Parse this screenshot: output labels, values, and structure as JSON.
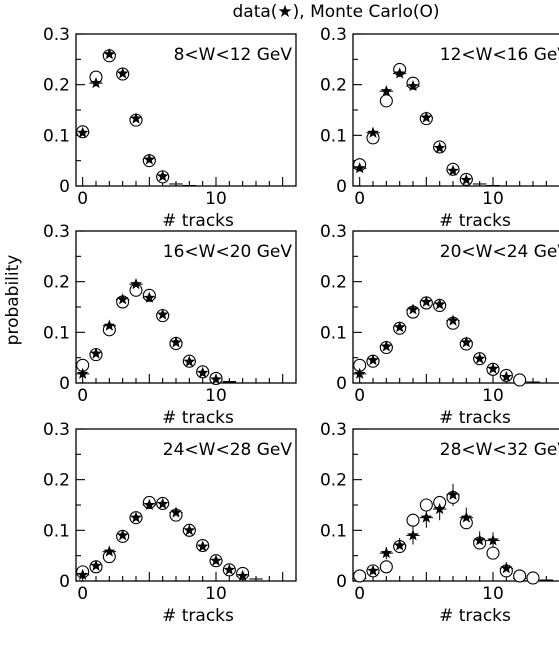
{
  "figure": {
    "title": "data(★), Monte Carlo(O)",
    "ylabel": "probability"
  },
  "chart_data": [
    {
      "type": "scatter",
      "title": "8<W<12 GeV",
      "xlabel": "# tracks",
      "ylabel": "probability",
      "xlim": [
        -0.5,
        16
      ],
      "ylim": [
        0,
        0.3
      ],
      "xticks": [
        "0",
        "10"
      ],
      "yticks": [
        "0",
        "0.1",
        "0.2",
        "0.3"
      ],
      "series": [
        {
          "name": "data",
          "marker": "star",
          "x": [
            0,
            1,
            2,
            3,
            4,
            5,
            6,
            7,
            8
          ],
          "y": [
            0.105,
            0.203,
            0.26,
            0.222,
            0.133,
            0.052,
            0.019,
            0.004,
            0.001
          ],
          "yerr": [
            0.005,
            0.006,
            0.007,
            0.006,
            0.005,
            0.004,
            0.003,
            0.002,
            0.001
          ]
        },
        {
          "name": "Monte Carlo",
          "marker": "circle",
          "x": [
            0,
            1,
            2,
            3,
            4,
            5,
            6,
            7,
            8
          ],
          "y": [
            0.107,
            0.215,
            0.257,
            0.221,
            0.13,
            0.05,
            0.018,
            0.004,
            0.001
          ]
        }
      ]
    },
    {
      "type": "scatter",
      "title": "12<W<16 GeV",
      "xlabel": "# tracks",
      "ylabel": "probability",
      "xlim": [
        -0.5,
        16
      ],
      "ylim": [
        0,
        0.3
      ],
      "xticks": [
        "0",
        "10"
      ],
      "yticks": [
        "0",
        "0.1",
        "0.2",
        "0.3"
      ],
      "series": [
        {
          "name": "data",
          "marker": "star",
          "x": [
            0,
            1,
            2,
            3,
            4,
            5,
            6,
            7,
            8,
            9,
            10
          ],
          "y": [
            0.035,
            0.105,
            0.187,
            0.222,
            0.197,
            0.135,
            0.075,
            0.03,
            0.012,
            0.004,
            0.001
          ],
          "yerr": [
            0.004,
            0.006,
            0.007,
            0.007,
            0.007,
            0.006,
            0.004,
            0.003,
            0.002,
            0.002,
            0.001
          ]
        },
        {
          "name": "Monte Carlo",
          "marker": "circle",
          "x": [
            0,
            1,
            2,
            3,
            4,
            5,
            6,
            7,
            8,
            9,
            10
          ],
          "y": [
            0.042,
            0.095,
            0.168,
            0.23,
            0.203,
            0.133,
            0.077,
            0.033,
            0.013,
            0.004,
            0.001
          ]
        }
      ]
    },
    {
      "type": "scatter",
      "title": "16<W<20 GeV",
      "xlabel": "# tracks",
      "ylabel": "probability",
      "xlim": [
        -0.5,
        16
      ],
      "ylim": [
        0,
        0.3
      ],
      "xticks": [
        "0",
        "10"
      ],
      "yticks": [
        "0",
        "0.1",
        "0.2",
        "0.3"
      ],
      "series": [
        {
          "name": "data",
          "marker": "star",
          "x": [
            0,
            1,
            2,
            3,
            4,
            5,
            6,
            7,
            8,
            9,
            10,
            11
          ],
          "y": [
            0.018,
            0.058,
            0.113,
            0.165,
            0.195,
            0.168,
            0.135,
            0.08,
            0.042,
            0.02,
            0.007,
            0.002
          ],
          "yerr": [
            0.004,
            0.005,
            0.006,
            0.007,
            0.007,
            0.007,
            0.006,
            0.005,
            0.004,
            0.003,
            0.002,
            0.001
          ]
        },
        {
          "name": "Monte Carlo",
          "marker": "circle",
          "x": [
            0,
            1,
            2,
            3,
            4,
            5,
            6,
            7,
            8,
            9,
            10,
            11
          ],
          "y": [
            0.035,
            0.056,
            0.105,
            0.16,
            0.183,
            0.173,
            0.133,
            0.078,
            0.043,
            0.022,
            0.009,
            0.003
          ]
        }
      ]
    },
    {
      "type": "scatter",
      "title": "20<W<24 GeV",
      "xlabel": "# tracks",
      "ylabel": "probability",
      "xlim": [
        -0.5,
        16
      ],
      "ylim": [
        0,
        0.3
      ],
      "xticks": [
        "0",
        "10"
      ],
      "yticks": [
        "0",
        "0.1",
        "0.2",
        "0.3"
      ],
      "series": [
        {
          "name": "data",
          "marker": "star",
          "x": [
            0,
            1,
            2,
            3,
            4,
            5,
            6,
            7,
            8,
            9,
            10,
            11,
            12,
            13
          ],
          "y": [
            0.018,
            0.045,
            0.072,
            0.11,
            0.145,
            0.16,
            0.155,
            0.123,
            0.08,
            0.048,
            0.028,
            0.012,
            0.005,
            0.002
          ],
          "yerr": [
            0.004,
            0.005,
            0.006,
            0.006,
            0.007,
            0.007,
            0.007,
            0.006,
            0.005,
            0.004,
            0.003,
            0.002,
            0.002,
            0.001
          ]
        },
        {
          "name": "Monte Carlo",
          "marker": "circle",
          "x": [
            0,
            1,
            2,
            3,
            4,
            5,
            6,
            7,
            8,
            9,
            10,
            11,
            12,
            13
          ],
          "y": [
            0.035,
            0.043,
            0.07,
            0.108,
            0.14,
            0.158,
            0.153,
            0.118,
            0.077,
            0.048,
            0.027,
            0.015,
            0.006,
            0.002
          ]
        }
      ]
    },
    {
      "type": "scatter",
      "title": "24<W<28 GeV",
      "xlabel": "# tracks",
      "ylabel": "probability",
      "xlim": [
        -0.5,
        16
      ],
      "ylim": [
        0,
        0.3
      ],
      "xticks": [
        "0",
        "10"
      ],
      "yticks": [
        "0",
        "0.1",
        "0.2",
        "0.3"
      ],
      "series": [
        {
          "name": "data",
          "marker": "star",
          "x": [
            0,
            1,
            2,
            3,
            4,
            5,
            6,
            7,
            8,
            9,
            10,
            11,
            12,
            13
          ],
          "y": [
            0.012,
            0.03,
            0.058,
            0.09,
            0.125,
            0.15,
            0.152,
            0.135,
            0.1,
            0.068,
            0.04,
            0.022,
            0.01,
            0.004
          ],
          "yerr": [
            0.004,
            0.005,
            0.006,
            0.006,
            0.007,
            0.007,
            0.007,
            0.007,
            0.006,
            0.005,
            0.004,
            0.003,
            0.002,
            0.002
          ]
        },
        {
          "name": "Monte Carlo",
          "marker": "circle",
          "x": [
            0,
            1,
            2,
            3,
            4,
            5,
            6,
            7,
            8,
            9,
            10,
            11,
            12,
            13
          ],
          "y": [
            0.018,
            0.028,
            0.048,
            0.088,
            0.125,
            0.155,
            0.153,
            0.13,
            0.1,
            0.07,
            0.04,
            0.022,
            0.015,
            0.004
          ]
        }
      ]
    },
    {
      "type": "scatter",
      "title": "28<W<32 GeV",
      "xlabel": "# tracks",
      "ylabel": "probability",
      "xlim": [
        -0.5,
        16
      ],
      "ylim": [
        0,
        0.3
      ],
      "xticks": [
        "0",
        "10"
      ],
      "yticks": [
        "0",
        "0.1",
        "0.2",
        "0.3"
      ],
      "series": [
        {
          "name": "data",
          "marker": "star",
          "x": [
            0,
            1,
            2,
            3,
            4,
            5,
            6,
            7,
            8,
            9,
            10,
            11,
            12
          ],
          "y": [
            0.005,
            0.02,
            0.055,
            0.07,
            0.09,
            0.125,
            0.142,
            0.17,
            0.125,
            0.08,
            0.08,
            0.025,
            0.005
          ],
          "yerr": [
            0.004,
            0.008,
            0.012,
            0.015,
            0.018,
            0.02,
            0.022,
            0.022,
            0.02,
            0.018,
            0.016,
            0.012,
            0.006
          ]
        },
        {
          "name": "Monte Carlo",
          "marker": "circle",
          "x": [
            0,
            1,
            2,
            3,
            4,
            5,
            6,
            7,
            8,
            9,
            10,
            11,
            12,
            13,
            14
          ],
          "y": [
            0.01,
            0.02,
            0.028,
            0.068,
            0.12,
            0.15,
            0.155,
            0.165,
            0.115,
            0.075,
            0.055,
            0.02,
            0.01,
            0.006,
            0.002
          ]
        }
      ]
    }
  ]
}
